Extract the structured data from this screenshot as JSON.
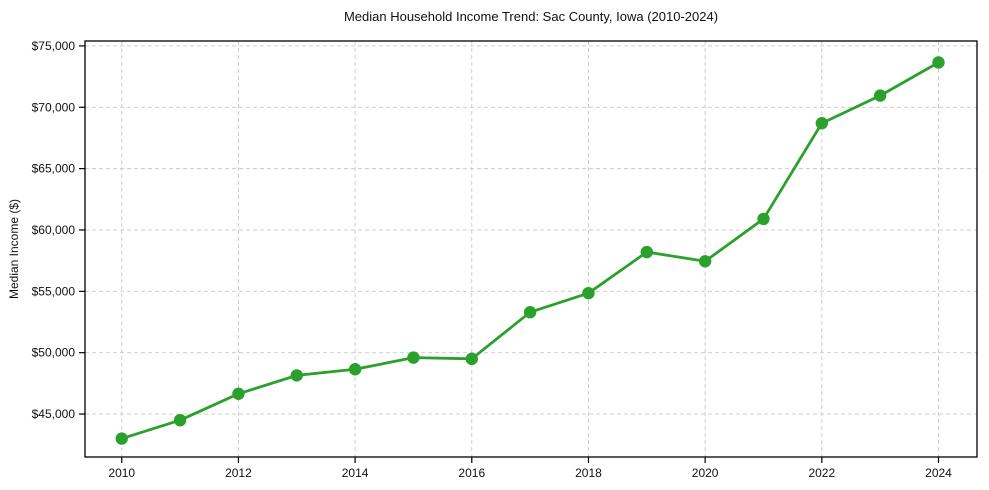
{
  "figure": {
    "title": "Median Household Income Trend: Sac County, Iowa (2010-2024)"
  },
  "chart_data": {
    "type": "line",
    "title": "Median Household Income Trend: Sac County, Iowa (2010-2024)",
    "xlabel": "",
    "ylabel": "Median Income ($)",
    "x": [
      2010,
      2011,
      2012,
      2013,
      2014,
      2015,
      2016,
      2017,
      2018,
      2019,
      2020,
      2021,
      2022,
      2023,
      2024
    ],
    "values": [
      43000,
      44500,
      46650,
      48150,
      48650,
      49600,
      49500,
      53300,
      54850,
      58200,
      57450,
      60900,
      68700,
      70950,
      73650
    ],
    "xticks": {
      "values": [
        2010,
        2012,
        2014,
        2016,
        2018,
        2020,
        2022,
        2024
      ],
      "labels": [
        "2010",
        "2012",
        "2014",
        "2016",
        "2018",
        "2020",
        "2022",
        "2024"
      ]
    },
    "yticks": {
      "values": [
        45000,
        50000,
        55000,
        60000,
        65000,
        70000,
        75000
      ],
      "labels": [
        "$45,000",
        "$50,000",
        "$55,000",
        "$60,000",
        "$65,000",
        "$70,000",
        "$75,000"
      ]
    },
    "xlim": [
      2009.37,
      2024.66
    ],
    "ylim": [
      41500,
      75400
    ],
    "grid": true,
    "grid_style": "dashed",
    "legend_position": "none",
    "marker": "circle"
  },
  "colors": {
    "line": "#2ca02c",
    "marker": "#2ca02c",
    "grid": "#c9c9c9",
    "axis": "#000000",
    "text": "#111111",
    "background": "#ffffff"
  }
}
